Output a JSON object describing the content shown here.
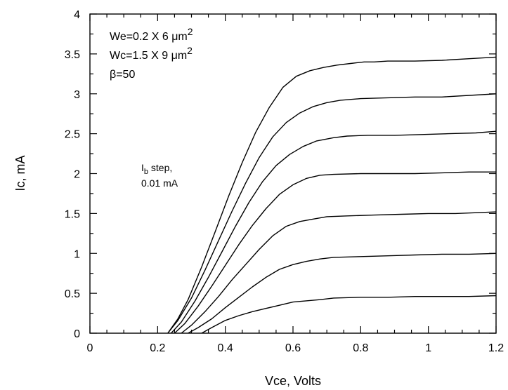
{
  "chart_data": {
    "type": "line",
    "xlabel": "Vce, Volts",
    "ylabel": "Ic, mA",
    "xlim": [
      0,
      1.2
    ],
    "ylim": [
      0,
      4
    ],
    "x_ticks": [
      "0",
      "0.2",
      "0.4",
      "0.6",
      "0.8",
      "1",
      "1.2"
    ],
    "y_ticks": [
      "0",
      "0.5",
      "1",
      "1.5",
      "2",
      "2.5",
      "3",
      "3.5",
      "4"
    ],
    "grid": false,
    "annotations": {
      "we_base": "We=0.2 X 6 ",
      "we_unit": "μm",
      "we_exp": "2",
      "wc_base": "Wc=1.5 X 9 ",
      "wc_unit": "μm",
      "wc_exp": "2",
      "beta": "β=50",
      "ib_main": "I",
      "ib_sub": "b",
      "ib_rest": " step,",
      "ib_line2": "0.01 mA"
    },
    "series": [
      {
        "x": [
          0.33,
          0.36,
          0.4,
          0.44,
          0.48,
          0.52,
          0.56,
          0.6,
          0.68,
          0.72,
          0.8,
          0.88,
          0.96,
          1.04,
          1.12,
          1.2
        ],
        "y": [
          0.0,
          0.07,
          0.16,
          0.22,
          0.27,
          0.31,
          0.35,
          0.39,
          0.42,
          0.44,
          0.45,
          0.45,
          0.46,
          0.46,
          0.46,
          0.47
        ]
      },
      {
        "x": [
          0.29,
          0.32,
          0.36,
          0.4,
          0.44,
          0.48,
          0.52,
          0.56,
          0.6,
          0.64,
          0.68,
          0.72,
          0.8,
          0.88,
          0.96,
          1.04,
          1.12,
          1.2
        ],
        "y": [
          0.0,
          0.07,
          0.18,
          0.32,
          0.45,
          0.58,
          0.7,
          0.8,
          0.86,
          0.9,
          0.93,
          0.95,
          0.96,
          0.97,
          0.98,
          0.99,
          0.99,
          1.0
        ]
      },
      {
        "x": [
          0.27,
          0.3,
          0.34,
          0.38,
          0.42,
          0.46,
          0.5,
          0.54,
          0.58,
          0.62,
          0.66,
          0.7,
          0.76,
          0.84,
          0.92,
          1.0,
          1.08,
          1.2
        ],
        "y": [
          0.0,
          0.1,
          0.27,
          0.46,
          0.67,
          0.86,
          1.05,
          1.22,
          1.34,
          1.4,
          1.43,
          1.46,
          1.47,
          1.48,
          1.49,
          1.5,
          1.5,
          1.52
        ]
      },
      {
        "x": [
          0.25,
          0.28,
          0.32,
          0.36,
          0.4,
          0.44,
          0.48,
          0.52,
          0.56,
          0.6,
          0.64,
          0.68,
          0.72,
          0.8,
          0.88,
          0.96,
          1.04,
          1.12,
          1.2
        ],
        "y": [
          0.0,
          0.12,
          0.34,
          0.59,
          0.85,
          1.11,
          1.35,
          1.56,
          1.74,
          1.86,
          1.94,
          1.98,
          1.99,
          2.0,
          2.0,
          2.0,
          2.01,
          2.02,
          2.02
        ]
      },
      {
        "x": [
          0.24,
          0.27,
          0.31,
          0.35,
          0.39,
          0.43,
          0.47,
          0.51,
          0.55,
          0.59,
          0.63,
          0.67,
          0.72,
          0.76,
          0.82,
          0.9,
          0.98,
          1.06,
          1.14,
          1.2
        ],
        "y": [
          0.0,
          0.14,
          0.4,
          0.7,
          1.02,
          1.34,
          1.64,
          1.9,
          2.1,
          2.24,
          2.34,
          2.41,
          2.45,
          2.47,
          2.48,
          2.48,
          2.49,
          2.5,
          2.51,
          2.53
        ]
      },
      {
        "x": [
          0.23,
          0.26,
          0.3,
          0.34,
          0.38,
          0.42,
          0.46,
          0.5,
          0.54,
          0.58,
          0.62,
          0.66,
          0.7,
          0.74,
          0.8,
          0.88,
          0.96,
          1.04,
          1.12,
          1.2
        ],
        "y": [
          0.0,
          0.16,
          0.44,
          0.79,
          1.16,
          1.53,
          1.88,
          2.2,
          2.46,
          2.64,
          2.76,
          2.84,
          2.89,
          2.92,
          2.94,
          2.95,
          2.96,
          2.96,
          2.98,
          3.0
        ]
      },
      {
        "x": [
          0.23,
          0.26,
          0.29,
          0.33,
          0.37,
          0.41,
          0.45,
          0.49,
          0.53,
          0.57,
          0.61,
          0.65,
          0.69,
          0.73,
          0.77,
          0.81,
          0.84,
          0.88,
          0.96,
          1.04,
          1.12,
          1.2
        ],
        "y": [
          0.0,
          0.18,
          0.42,
          0.83,
          1.27,
          1.72,
          2.14,
          2.52,
          2.83,
          3.08,
          3.22,
          3.29,
          3.33,
          3.36,
          3.38,
          3.4,
          3.4,
          3.41,
          3.41,
          3.42,
          3.44,
          3.46
        ]
      }
    ]
  }
}
